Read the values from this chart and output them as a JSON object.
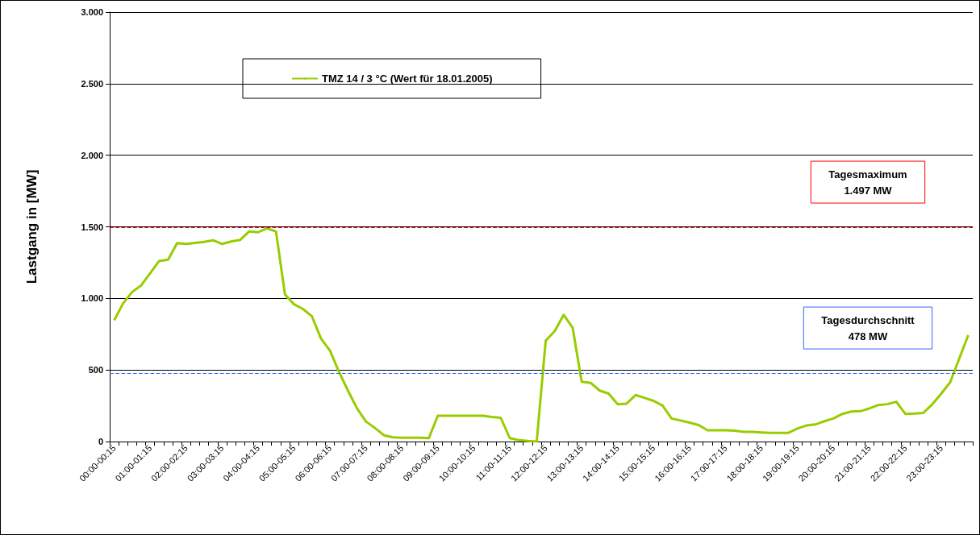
{
  "chart_data": {
    "type": "line",
    "ylabel": "Lastgang in [MW]",
    "categories": [
      "00:00-00:15",
      null,
      null,
      null,
      "01:00-01:15",
      null,
      null,
      null,
      "02:00-02:15",
      null,
      null,
      null,
      "03:00-03:15",
      null,
      null,
      null,
      "04:00-04:15",
      null,
      null,
      null,
      "05:00-05:15",
      null,
      null,
      null,
      "06:00-06:15",
      null,
      null,
      null,
      "07:00-07:15",
      null,
      null,
      null,
      "08:00-08:15",
      null,
      null,
      null,
      "09:00-09:15",
      null,
      null,
      null,
      "10:00-10:15",
      null,
      null,
      null,
      "11:00-11:15",
      null,
      null,
      null,
      "12:00-12:15",
      null,
      null,
      null,
      "13:00-13:15",
      null,
      null,
      null,
      "14:00-14:15",
      null,
      null,
      null,
      "15:00-15:15",
      null,
      null,
      null,
      "16:00-16:15",
      null,
      null,
      null,
      "17:00-17:15",
      null,
      null,
      null,
      "18:00-18:15",
      null,
      null,
      null,
      "19:00-19:15",
      null,
      null,
      null,
      "20:00-20:15",
      null,
      null,
      null,
      "21:00-21:15",
      null,
      null,
      null,
      "22:00-22:15",
      null,
      null,
      null,
      "23:00-23:15",
      null,
      null,
      null
    ],
    "series": [
      {
        "name": "TMZ 14 / 3 °C (Wert für 18.01.2005)",
        "color": "#99cc00",
        "values": [
          847,
          966,
          1045,
          1091,
          1176,
          1261,
          1271,
          1386,
          1380,
          1388,
          1395,
          1406,
          1380,
          1397,
          1408,
          1467,
          1462,
          1490,
          1467,
          1027,
          959,
          926,
          874,
          720,
          635,
          488,
          356,
          233,
          140,
          95,
          44,
          30,
          27,
          27,
          27,
          24,
          180,
          180,
          180,
          180,
          180,
          180,
          172,
          166,
          24,
          10,
          4,
          0,
          705,
          771,
          885,
          794,
          418,
          410,
          356,
          335,
          261,
          265,
          325,
          305,
          284,
          251,
          161,
          147,
          132,
          115,
          79,
          79,
          79,
          76,
          68,
          68,
          64,
          61,
          61,
          61,
          91,
          112,
          119,
          142,
          161,
          193,
          210,
          212,
          231,
          255,
          261,
          278,
          193,
          195,
          200,
          260,
          335,
          415,
          580,
          743
        ]
      }
    ],
    "ylim": [
      0,
      3000
    ],
    "yticks": [
      {
        "value": 0,
        "label": "0"
      },
      {
        "value": 500,
        "label": "500"
      },
      {
        "value": 1000,
        "label": "1.000"
      },
      {
        "value": 1500,
        "label": "1.500"
      },
      {
        "value": 2000,
        "label": "2.000"
      },
      {
        "value": 2500,
        "label": "2.500"
      },
      {
        "value": 3000,
        "label": "3.000"
      }
    ],
    "grid": "y",
    "legend": "top left",
    "marker": "none",
    "line_style": "solid",
    "ref_lines": [
      {
        "axis": "y",
        "value": 1497,
        "label": "Tagesmaximum\n1.497 MW",
        "color": "#ff0000",
        "line_style": "dashed"
      },
      {
        "axis": "y",
        "value": 478,
        "label": "Tagesdurchschnitt\n478 MW",
        "color": "#3366ff",
        "line_style": "dashed"
      }
    ]
  }
}
